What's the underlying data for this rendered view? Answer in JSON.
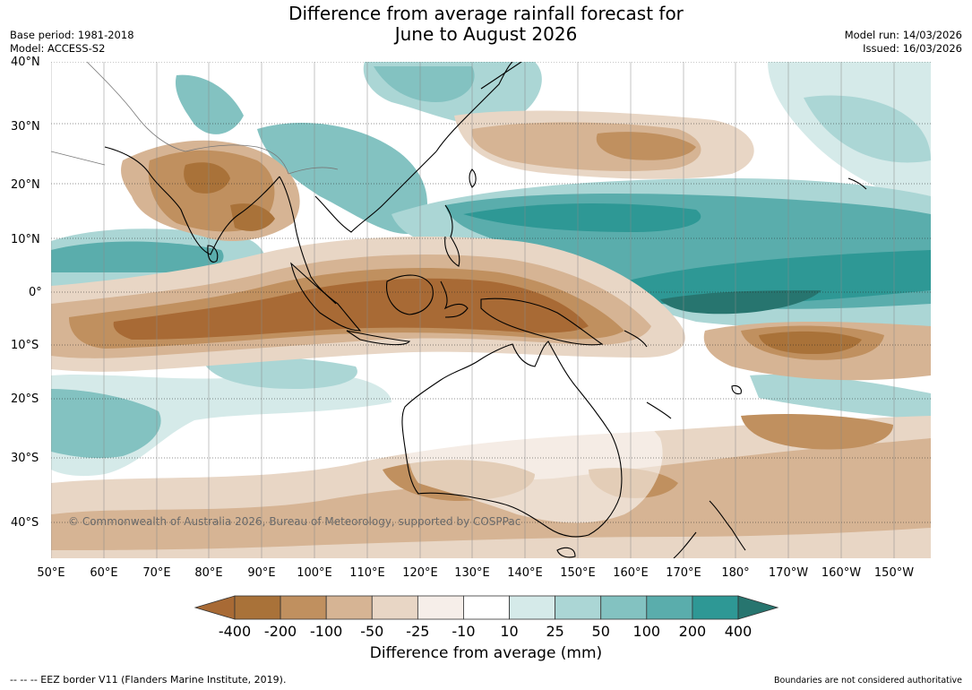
{
  "header": {
    "title_line1": "Difference from average rainfall forecast for",
    "title_line2": "June to August 2026",
    "base_period": "Base period: 1981-2018",
    "model": "Model: ACCESS-S2",
    "model_run": "Model run: 14/03/2026",
    "issued": "Issued: 16/03/2026"
  },
  "axes": {
    "lat_labels": [
      "40°N",
      "30°N",
      "20°N",
      "10°N",
      "0°",
      "10°S",
      "20°S",
      "30°S",
      "40°S"
    ],
    "lon_labels": [
      "50°E",
      "60°E",
      "70°E",
      "80°E",
      "90°E",
      "100°E",
      "110°E",
      "120°E",
      "130°E",
      "140°E",
      "150°E",
      "160°E",
      "170°E",
      "180°",
      "170°W",
      "160°W",
      "150°W"
    ]
  },
  "map": {
    "copyright": "© Commonwealth of Australia 2026, Bureau of Meteorology, supported by COSPPac"
  },
  "colorbar": {
    "ticks": [
      "-400",
      "-200",
      "-100",
      "-50",
      "-25",
      "-10",
      "10",
      "25",
      "50",
      "100",
      "200",
      "400"
    ],
    "colors": [
      "#A86A35",
      "#A97239",
      "#C0905F",
      "#D6B494",
      "#E8D6C5",
      "#F6EEE9",
      "#FFFFFF",
      "#D5EAE9",
      "#ABD6D5",
      "#83C2C1",
      "#5AADAC",
      "#2E9895",
      "#27756F"
    ],
    "title": "Difference from average (mm)"
  },
  "footer": {
    "eez_legend": "--  --  -- EEZ border V11 (Flanders Marine Institute, 2019).",
    "disclaimer": "Boundaries are not considered authoritative"
  }
}
